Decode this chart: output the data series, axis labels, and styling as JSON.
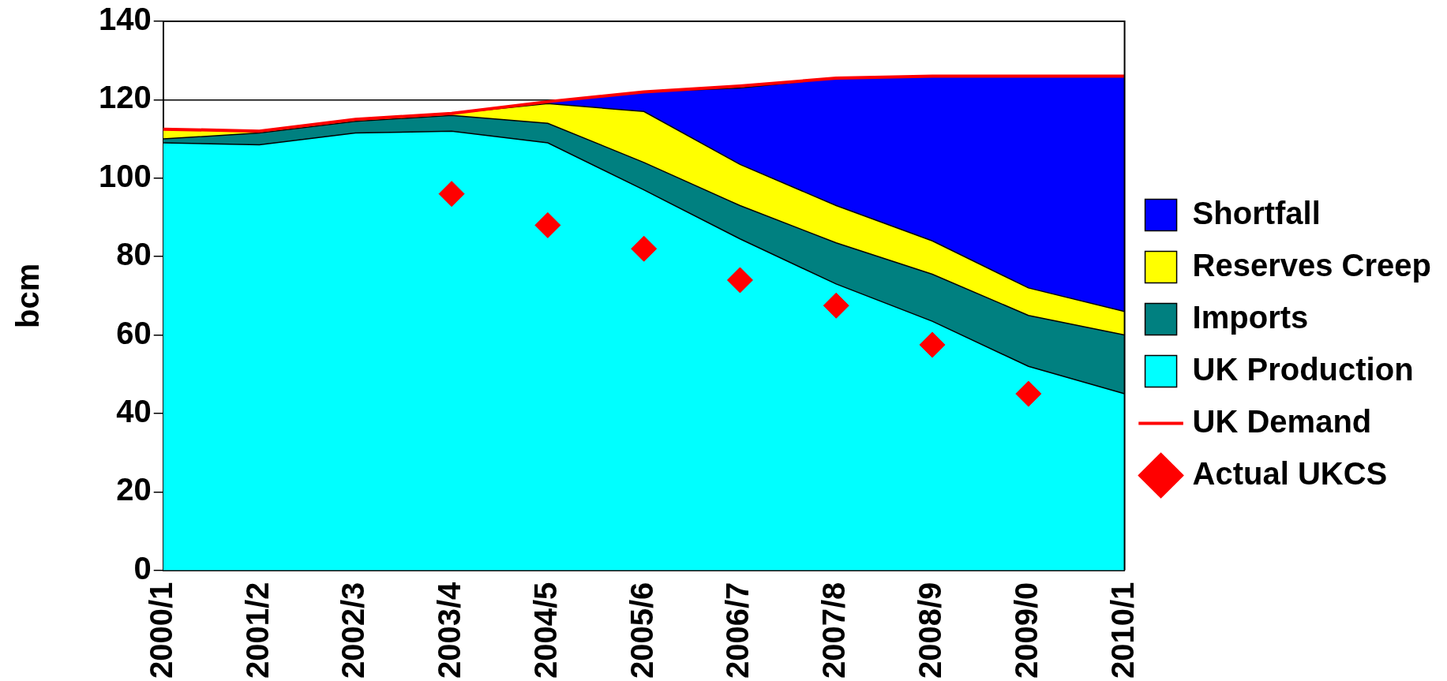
{
  "chart_data": {
    "type": "area",
    "stacked": true,
    "ylabel": "bcm",
    "categories": [
      "2000/1",
      "2001/2",
      "2002/3",
      "2003/4",
      "2004/5",
      "2005/6",
      "2006/7",
      "2007/8",
      "2008/9",
      "2009/0",
      "2010/1"
    ],
    "series": [
      {
        "name": "UK Production",
        "color": "#00ffff",
        "values": [
          109,
          108.5,
          111.5,
          112,
          109,
          97,
          84.5,
          73,
          63.5,
          52,
          45
        ]
      },
      {
        "name": "Imports",
        "color": "#008080",
        "values": [
          1,
          3,
          3,
          4,
          5,
          7,
          8.5,
          10.5,
          12,
          13,
          15
        ]
      },
      {
        "name": "Reserves Creep",
        "color": "#ffff00",
        "values": [
          2.5,
          0.5,
          0.5,
          0.5,
          5,
          13,
          10.5,
          9.5,
          8.5,
          7,
          6
        ]
      },
      {
        "name": "Shortfall",
        "color": "#0000ff",
        "values": [
          0,
          0,
          0,
          0,
          0.5,
          5,
          19.5,
          32.5,
          42,
          54,
          60
        ]
      },
      {
        "name": "UK Demand",
        "type": "line",
        "color": "#ff0000",
        "values": [
          112.5,
          112,
          115,
          116.5,
          119.5,
          122,
          123.5,
          125.5,
          126,
          126,
          126
        ]
      },
      {
        "name": "Actual UKCS",
        "type": "scatter",
        "marker": "diamond",
        "color": "#ff0000",
        "x": [
          "2003/4",
          "2004/5",
          "2005/6",
          "2006/7",
          "2007/8",
          "2008/9",
          "2009/0"
        ],
        "values": [
          96,
          88,
          82,
          74,
          67.5,
          57.5,
          45
        ]
      }
    ],
    "ylim": [
      0,
      140
    ],
    "yticks": [
      0,
      20,
      40,
      60,
      80,
      100,
      120,
      140
    ],
    "grid": "y",
    "legend": "right"
  }
}
